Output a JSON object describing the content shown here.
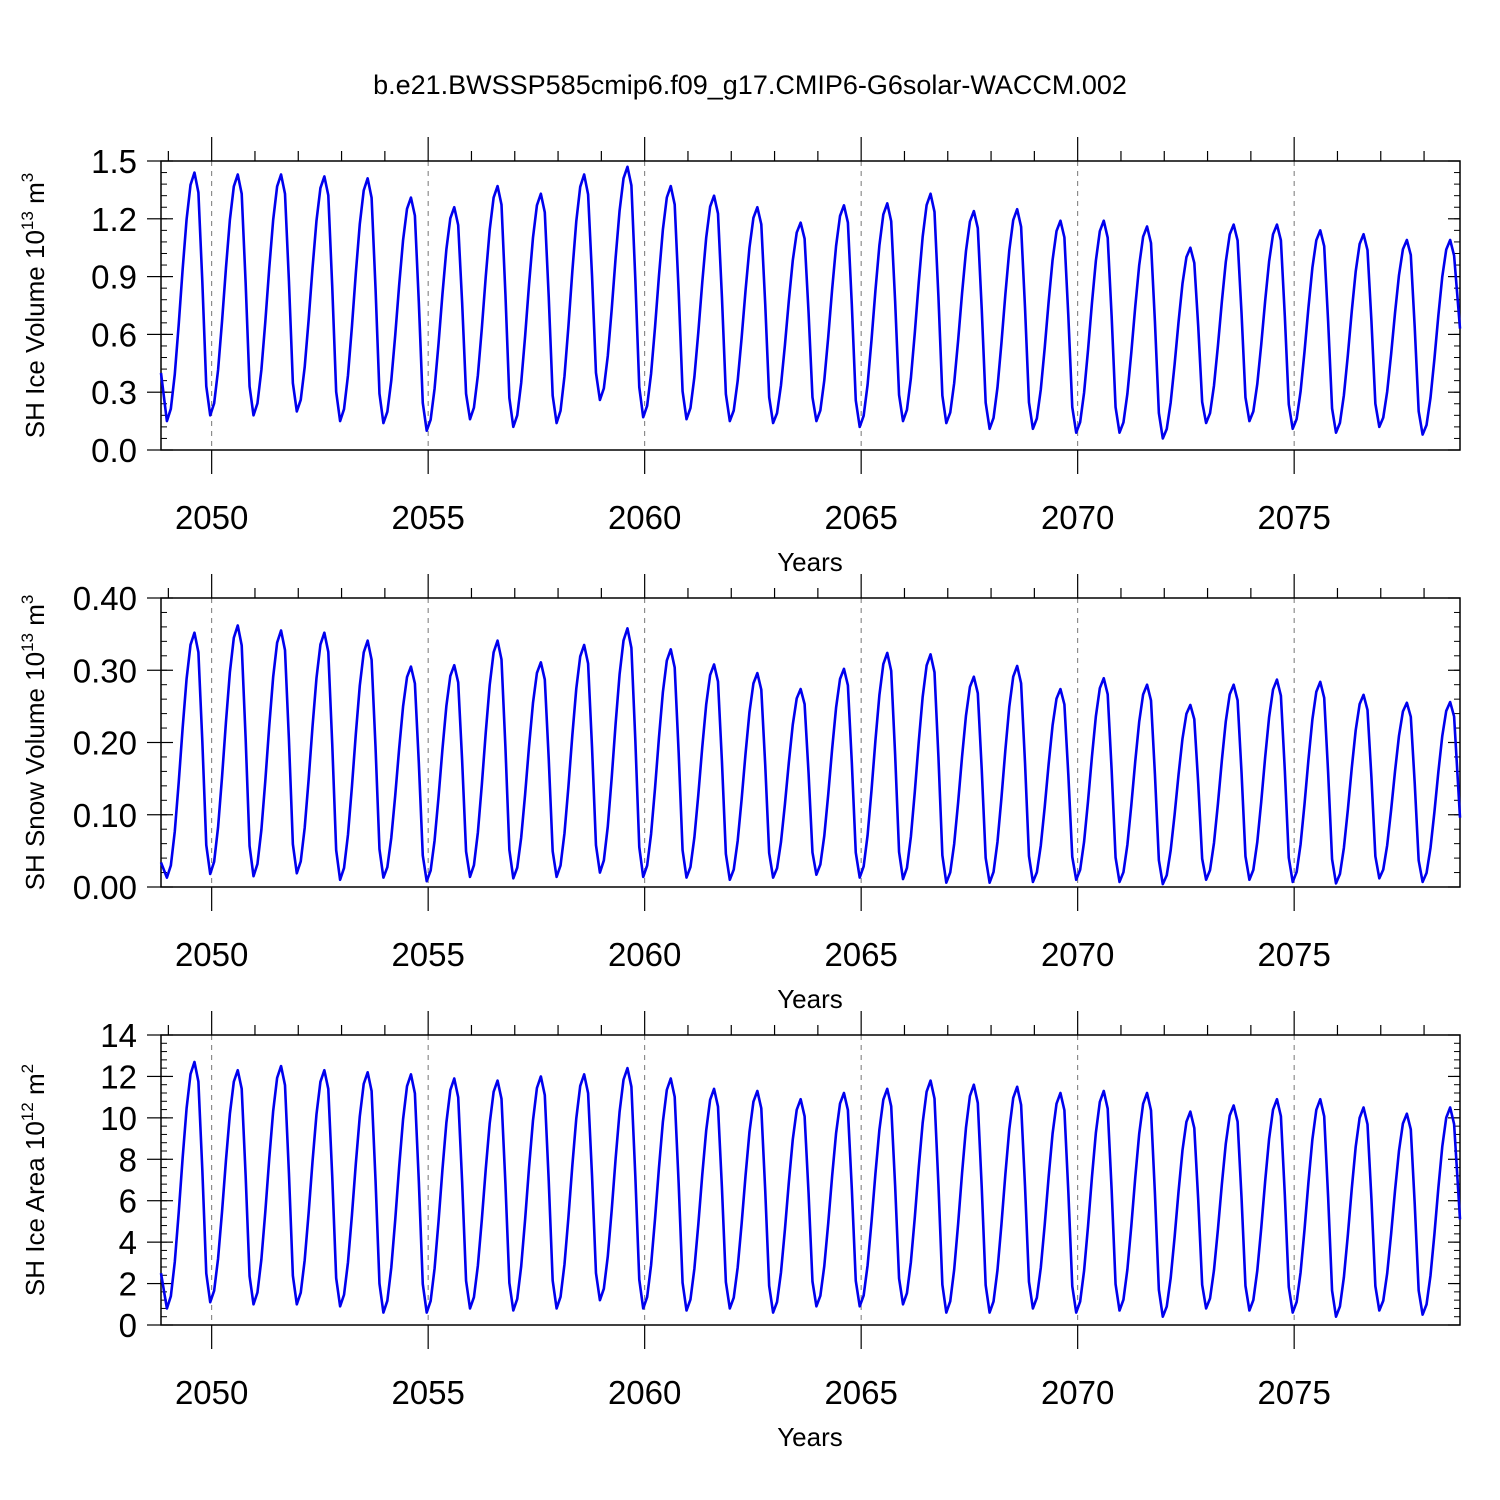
{
  "title": "b.e21.BWSSP585cmip6.f09_g17.CMIP6-G6solar-WACCM.002",
  "colors": {
    "series": "#0000ee",
    "axis": "#000000",
    "refline": "#777777"
  },
  "chart_data": [
    {
      "type": "line",
      "id": "ice-volume",
      "title": "",
      "xlabel": "Years",
      "ylabel": "SH Ice Volume 10",
      "ylabel_exp": "13",
      "ylabel_unit": " m",
      "ylabel_unit_exp": "3",
      "xlim": [
        2048.83,
        2078.83
      ],
      "ylim": [
        0,
        1.5
      ],
      "yticks": [
        "0.0",
        "0.3",
        "0.6",
        "0.9",
        "1.2",
        "1.5"
      ],
      "ytick_values": [
        0,
        0.3,
        0.6,
        0.9,
        1.2,
        1.5
      ],
      "xticks": [
        "2050",
        "2055",
        "2060",
        "2065",
        "2070",
        "2075"
      ],
      "xtick_values": [
        2050,
        2055,
        2060,
        2065,
        2070,
        2075
      ],
      "series": [
        {
          "name": "SH Ice Volume",
          "peaks": [
            1.44,
            1.43,
            1.43,
            1.42,
            1.41,
            1.31,
            1.26,
            1.37,
            1.33,
            1.43,
            1.47,
            1.37,
            1.32,
            1.26,
            1.18,
            1.27,
            1.28,
            1.33,
            1.24,
            1.25,
            1.19,
            1.19,
            1.16,
            1.05,
            1.17,
            1.17,
            1.14,
            1.12,
            1.09,
            1.09
          ],
          "troughs": [
            0.15,
            0.18,
            0.18,
            0.2,
            0.15,
            0.14,
            0.1,
            0.16,
            0.12,
            0.14,
            0.26,
            0.17,
            0.16,
            0.15,
            0.14,
            0.15,
            0.12,
            0.15,
            0.14,
            0.11,
            0.11,
            0.09,
            0.09,
            0.06,
            0.14,
            0.15,
            0.11,
            0.09,
            0.12,
            0.08
          ],
          "start": 0.4,
          "end": 0.63
        }
      ]
    },
    {
      "type": "line",
      "id": "snow-volume",
      "title": "",
      "xlabel": "Years",
      "ylabel": "SH Snow Volume 10",
      "ylabel_exp": "13",
      "ylabel_unit": " m",
      "ylabel_unit_exp": "3",
      "xlim": [
        2048.83,
        2078.83
      ],
      "ylim": [
        0,
        0.4
      ],
      "yticks": [
        "0.00",
        "0.10",
        "0.20",
        "0.30",
        "0.40"
      ],
      "ytick_values": [
        0,
        0.1,
        0.2,
        0.3,
        0.4
      ],
      "xticks": [
        "2050",
        "2055",
        "2060",
        "2065",
        "2070",
        "2075"
      ],
      "xtick_values": [
        2050,
        2055,
        2060,
        2065,
        2070,
        2075
      ],
      "series": [
        {
          "name": "SH Snow Volume",
          "peaks": [
            0.352,
            0.362,
            0.355,
            0.352,
            0.341,
            0.305,
            0.307,
            0.341,
            0.311,
            0.335,
            0.358,
            0.329,
            0.308,
            0.296,
            0.274,
            0.302,
            0.324,
            0.322,
            0.291,
            0.306,
            0.274,
            0.289,
            0.28,
            0.252,
            0.28,
            0.287,
            0.284,
            0.266,
            0.255,
            0.256
          ],
          "troughs": [
            0.013,
            0.018,
            0.015,
            0.019,
            0.01,
            0.013,
            0.008,
            0.014,
            0.012,
            0.014,
            0.02,
            0.014,
            0.013,
            0.01,
            0.013,
            0.017,
            0.013,
            0.011,
            0.006,
            0.006,
            0.007,
            0.01,
            0.007,
            0.004,
            0.01,
            0.01,
            0.007,
            0.005,
            0.012,
            0.007
          ],
          "start": 0.034,
          "end": 0.096
        }
      ]
    },
    {
      "type": "line",
      "id": "ice-area",
      "title": "",
      "xlabel": "Years",
      "ylabel": "SH Ice Area 10",
      "ylabel_exp": "12",
      "ylabel_unit": " m",
      "ylabel_unit_exp": "2",
      "xlim": [
        2048.83,
        2078.83
      ],
      "ylim": [
        0,
        14
      ],
      "yticks": [
        "0",
        "2",
        "4",
        "6",
        "8",
        "10",
        "12",
        "14"
      ],
      "ytick_values": [
        0,
        2,
        4,
        6,
        8,
        10,
        12,
        14
      ],
      "xticks": [
        "2050",
        "2055",
        "2060",
        "2065",
        "2070",
        "2075"
      ],
      "xtick_values": [
        2050,
        2055,
        2060,
        2065,
        2070,
        2075
      ],
      "series": [
        {
          "name": "SH Ice Area",
          "peaks": [
            12.7,
            12.3,
            12.5,
            12.3,
            12.2,
            12.1,
            11.9,
            11.8,
            12.0,
            12.1,
            12.4,
            11.9,
            11.4,
            11.3,
            10.9,
            11.2,
            11.4,
            11.8,
            11.6,
            11.5,
            11.2,
            11.3,
            11.2,
            10.3,
            10.6,
            10.9,
            10.9,
            10.5,
            10.2,
            10.5
          ],
          "troughs": [
            0.8,
            1.1,
            1.0,
            1.0,
            0.9,
            0.6,
            0.6,
            0.8,
            0.7,
            0.8,
            1.2,
            0.8,
            0.7,
            0.8,
            0.6,
            0.9,
            0.9,
            1.0,
            0.6,
            0.6,
            0.8,
            0.6,
            0.7,
            0.4,
            0.8,
            0.7,
            0.6,
            0.4,
            0.7,
            0.5
          ],
          "start": 2.5,
          "end": 5.1
        }
      ]
    }
  ]
}
